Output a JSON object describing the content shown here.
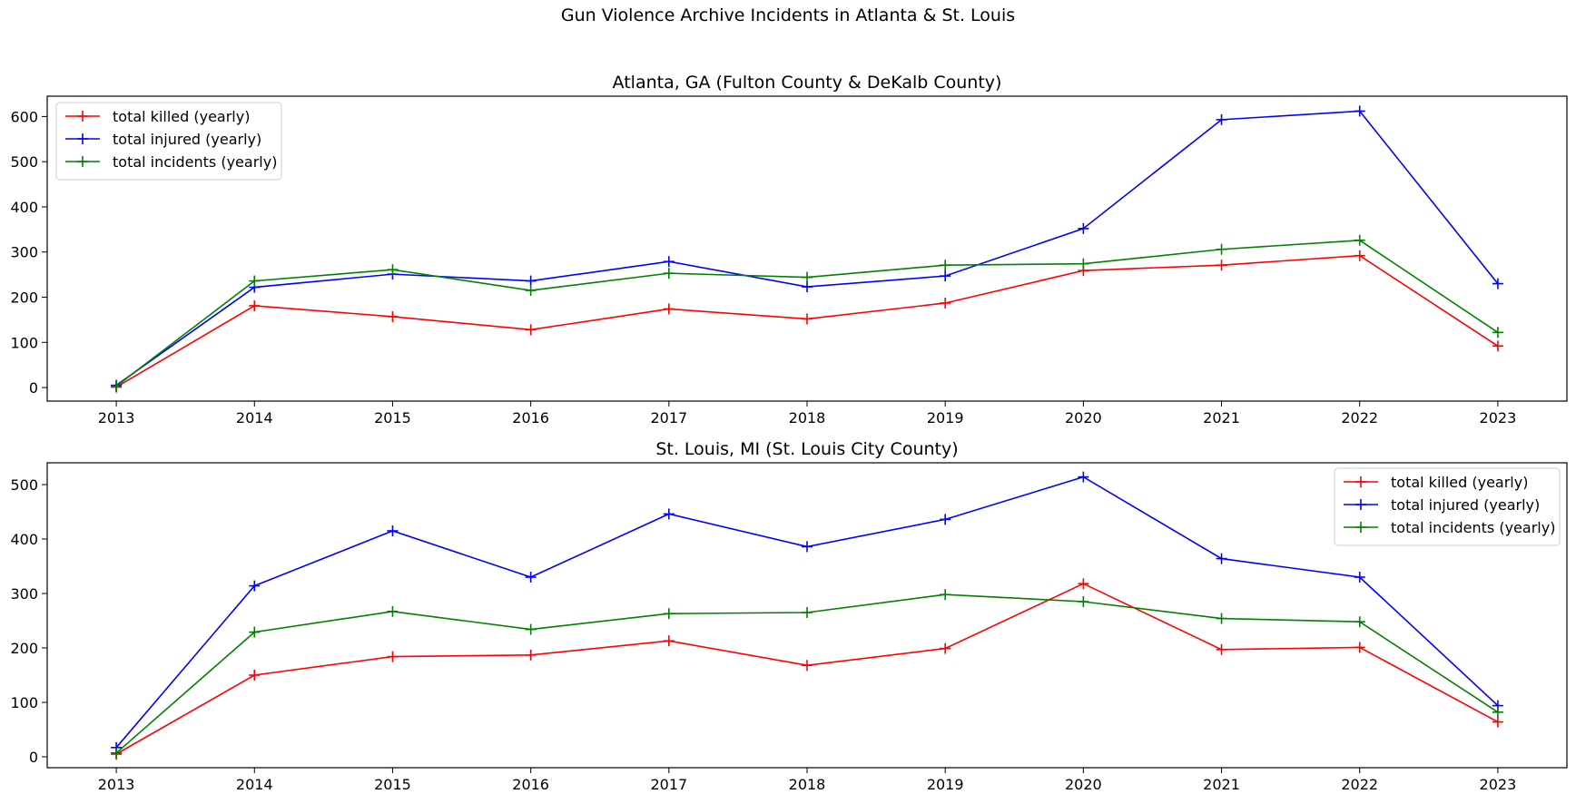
{
  "figure": {
    "suptitle": "Gun Violence Archive Incidents in Atlanta & St. Louis"
  },
  "series_styles": [
    {
      "name": "total killed (yearly)",
      "color": "#ff0000"
    },
    {
      "name": "total injured (yearly)",
      "color": "#0000ff"
    },
    {
      "name": "total incidents (yearly)",
      "color": "#008000"
    }
  ],
  "chart_data": [
    {
      "type": "line",
      "title": "Atlanta, GA (Fulton County & DeKalb County)",
      "xlabel": "",
      "ylabel": "",
      "x": [
        2013,
        2014,
        2015,
        2016,
        2017,
        2018,
        2019,
        2020,
        2021,
        2022,
        2023
      ],
      "xticks": [
        "2013",
        "2014",
        "2015",
        "2016",
        "2017",
        "2018",
        "2019",
        "2020",
        "2021",
        "2022",
        "2023"
      ],
      "yticks": [
        0,
        100,
        200,
        300,
        400,
        500,
        600
      ],
      "ylim": [
        -30,
        645
      ],
      "xlim": [
        2012.5,
        2023.5
      ],
      "legend": "upper left",
      "marker": "+",
      "series": [
        {
          "name": "total killed (yearly)",
          "values": [
            1,
            181,
            157,
            128,
            174,
            152,
            187,
            259,
            271,
            292,
            92
          ]
        },
        {
          "name": "total injured (yearly)",
          "values": [
            5,
            222,
            251,
            236,
            279,
            223,
            247,
            352,
            593,
            612,
            230
          ]
        },
        {
          "name": "total incidents (yearly)",
          "values": [
            3,
            236,
            261,
            215,
            253,
            244,
            271,
            274,
            306,
            326,
            122
          ]
        }
      ]
    },
    {
      "type": "line",
      "title": "St. Louis, MI (St. Louis City County)",
      "xlabel": "",
      "ylabel": "",
      "x": [
        2013,
        2014,
        2015,
        2016,
        2017,
        2018,
        2019,
        2020,
        2021,
        2022,
        2023
      ],
      "xticks": [
        "2013",
        "2014",
        "2015",
        "2016",
        "2017",
        "2018",
        "2019",
        "2020",
        "2021",
        "2022",
        "2023"
      ],
      "yticks": [
        0,
        100,
        200,
        300,
        400,
        500
      ],
      "ylim": [
        -20,
        540
      ],
      "xlim": [
        2012.5,
        2023.5
      ],
      "legend": "upper right",
      "marker": "+",
      "series": [
        {
          "name": "total killed (yearly)",
          "values": [
            5,
            150,
            184,
            187,
            213,
            168,
            199,
            318,
            197,
            201,
            64
          ]
        },
        {
          "name": "total injured (yearly)",
          "values": [
            17,
            314,
            415,
            330,
            446,
            386,
            436,
            514,
            364,
            330,
            94
          ]
        },
        {
          "name": "total incidents (yearly)",
          "values": [
            7,
            229,
            267,
            234,
            263,
            265,
            298,
            285,
            254,
            248,
            82
          ]
        }
      ]
    }
  ]
}
